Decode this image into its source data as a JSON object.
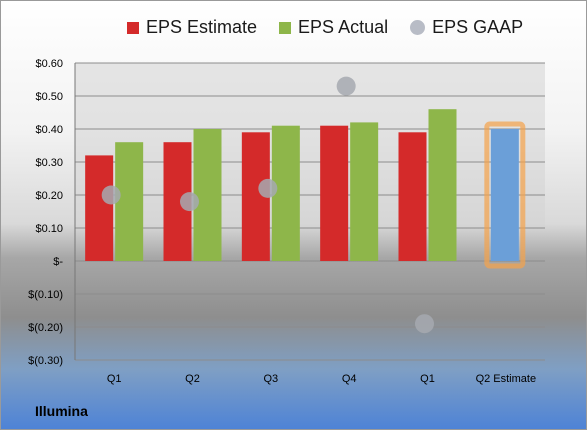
{
  "chart_data": {
    "type": "bar",
    "categories": [
      "Q1",
      "Q2",
      "Q3",
      "Q4",
      "Q1",
      "Q2 Estimate"
    ],
    "series": [
      {
        "name": "EPS Estimate",
        "values": [
          0.32,
          0.36,
          0.39,
          0.41,
          0.39,
          null
        ],
        "color": "#d42a2a"
      },
      {
        "name": "EPS Actual",
        "values": [
          0.36,
          0.4,
          0.41,
          0.42,
          0.46,
          0.4
        ],
        "color": "#8eb64a",
        "highlight_color": "#6b9fd8"
      },
      {
        "name": "EPS GAAP",
        "values": [
          0.2,
          0.18,
          0.22,
          0.53,
          -0.19,
          null
        ],
        "color": "#a6a9b0"
      }
    ],
    "y_ticks": [
      "$0.60",
      "$0.50",
      "$0.40",
      "$0.30",
      "$0.20",
      "$0.10",
      "$-",
      "$(0.10)",
      "$(0.20)",
      "$(0.30)"
    ],
    "ylim": [
      -0.3,
      0.6
    ],
    "grid": true,
    "legend_position": "top"
  },
  "company": "Illumina",
  "colors": {
    "highlight_outline": "#f5a24a"
  }
}
